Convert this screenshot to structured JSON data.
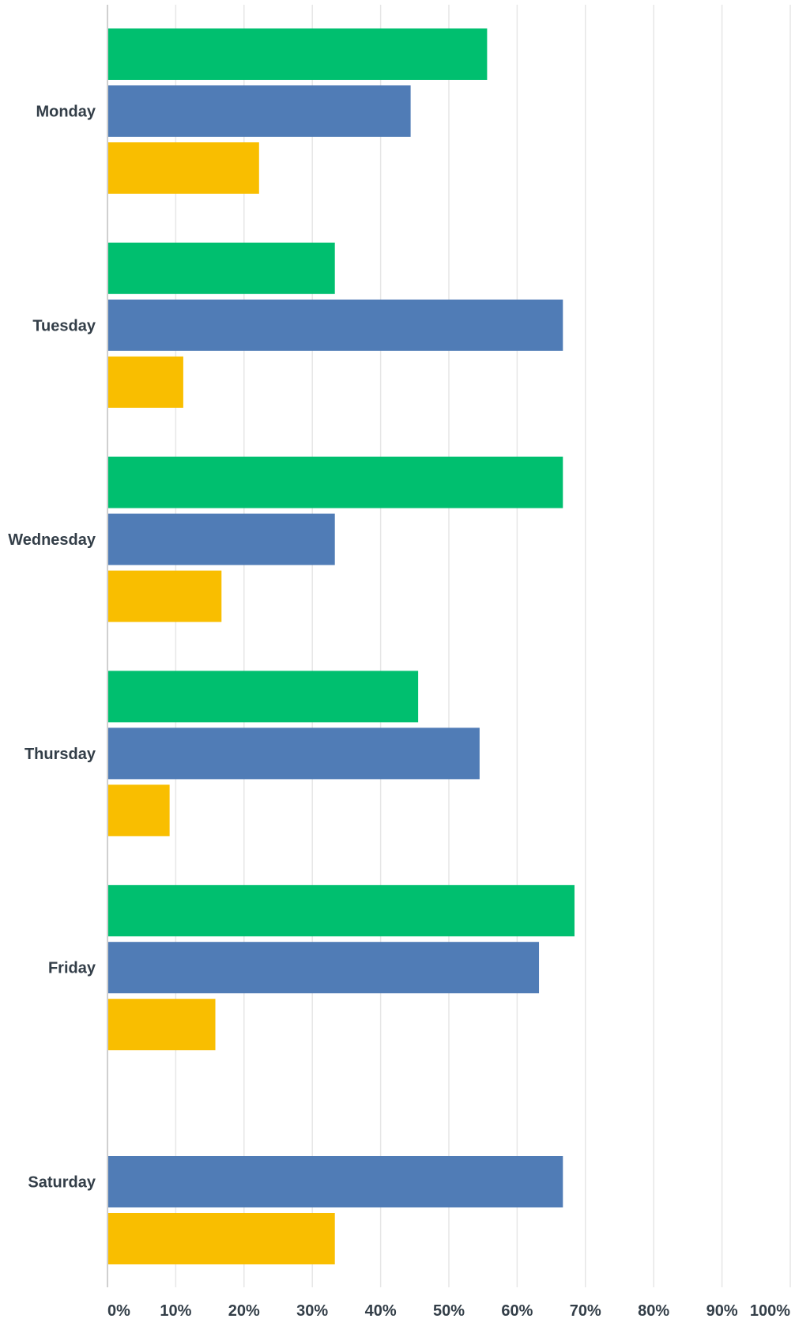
{
  "chart_data": {
    "type": "bar",
    "orientation": "horizontal",
    "title": "",
    "xlabel": "",
    "ylabel": "",
    "categories": [
      "Monday",
      "Tuesday",
      "Wednesday",
      "Thursday",
      "Friday",
      "Saturday"
    ],
    "series": [
      {
        "color": "#00bf6f",
        "values": [
          55.6,
          33.3,
          66.7,
          45.5,
          68.4,
          null
        ]
      },
      {
        "color": "#507cb6",
        "values": [
          44.4,
          66.7,
          33.3,
          54.5,
          63.2,
          66.7
        ]
      },
      {
        "color": "#f9be00",
        "values": [
          22.2,
          11.1,
          16.7,
          9.1,
          15.8,
          33.3
        ]
      }
    ],
    "xlim": [
      0,
      100
    ],
    "xticks": [
      "0%",
      "10%",
      "20%",
      "30%",
      "40%",
      "50%",
      "60%",
      "70%",
      "80%",
      "90%",
      "100%"
    ],
    "grid": true,
    "legend": "none"
  }
}
